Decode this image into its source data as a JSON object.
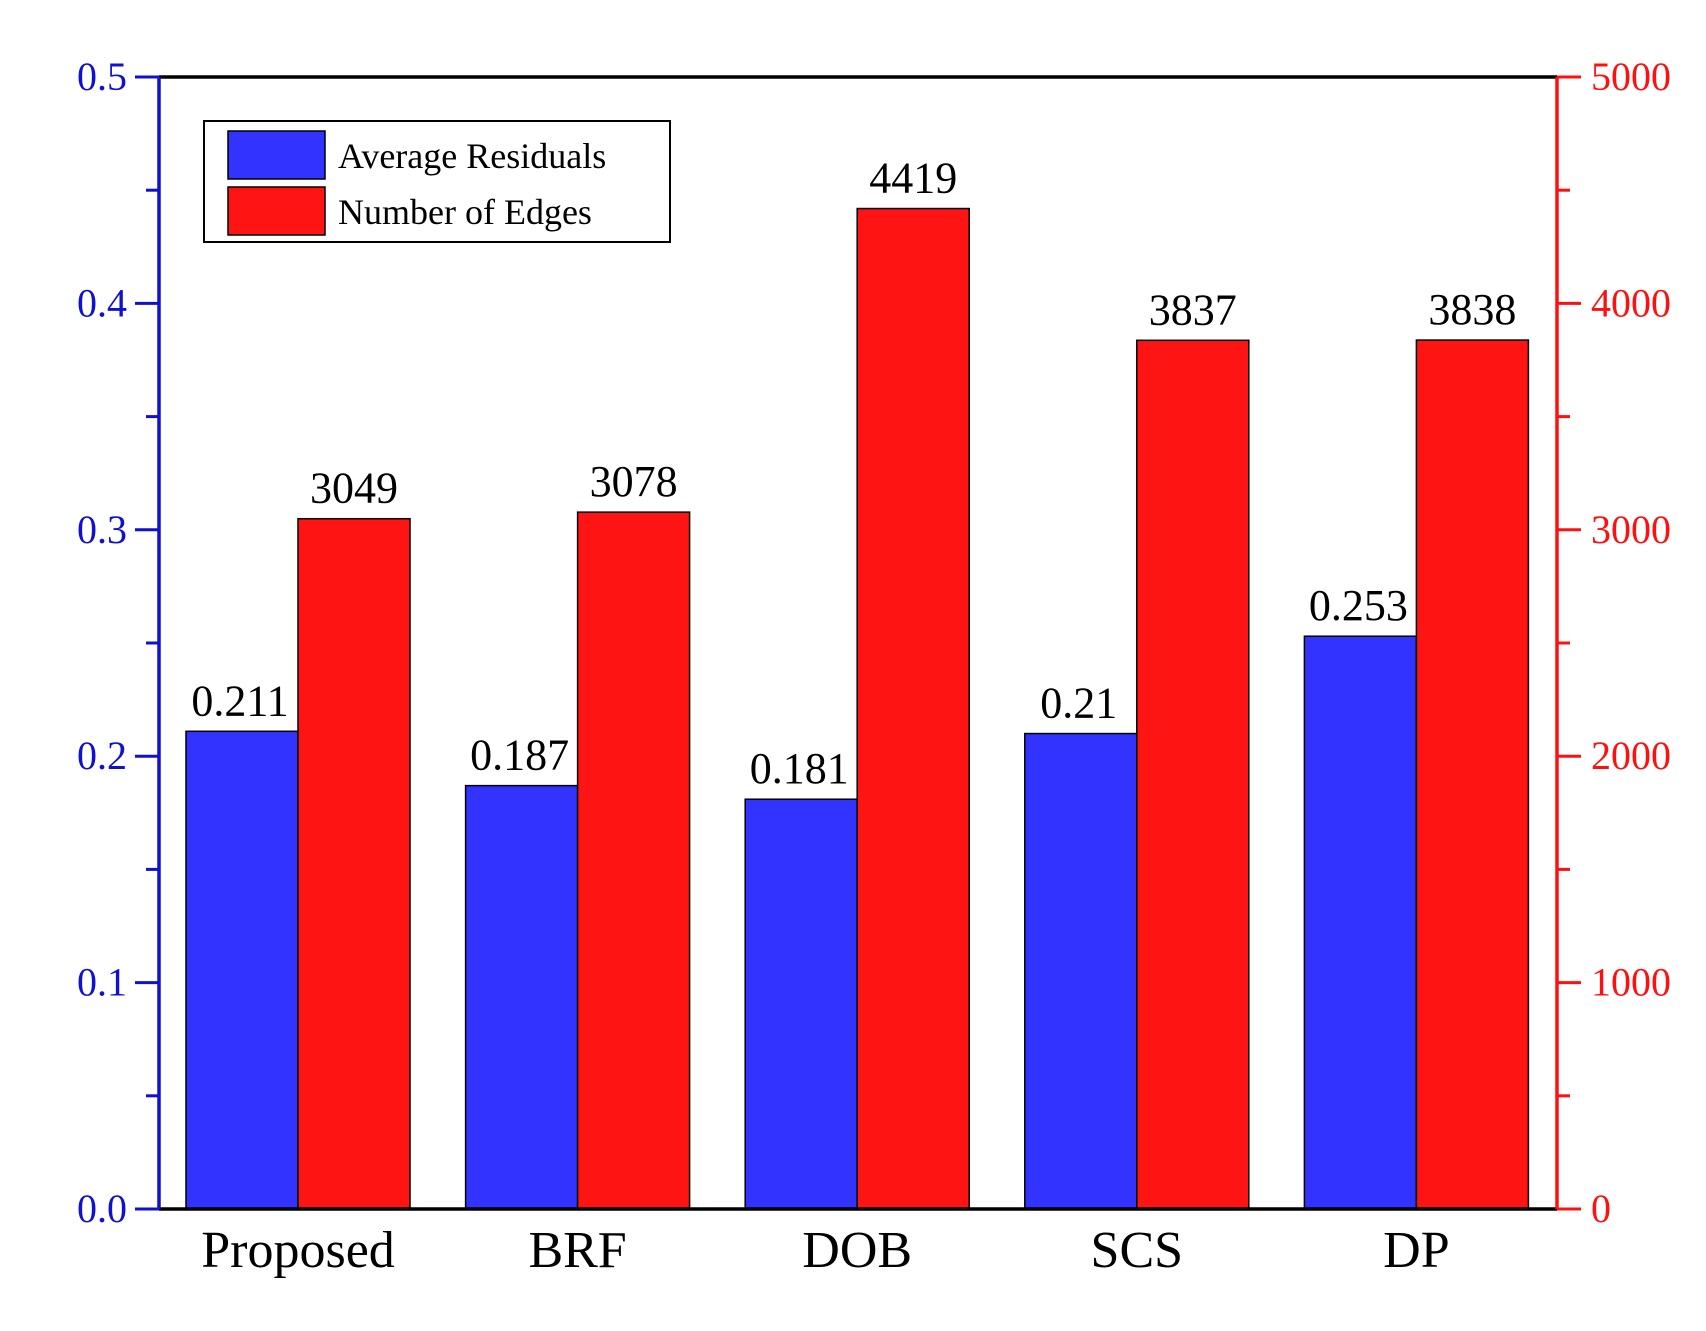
{
  "chart_data": {
    "type": "bar",
    "title": "",
    "xlabel": "",
    "ylabel": "",
    "y2label": "",
    "categories": [
      "Proposed",
      "BRF",
      "DOB",
      "SCS",
      "DP"
    ],
    "series": [
      {
        "name": "Average Residuals",
        "axis": "left",
        "color": "#3333ff",
        "values": [
          0.211,
          0.187,
          0.181,
          0.21,
          0.253
        ],
        "labels": [
          "0.211",
          "0.187",
          "0.181",
          "0.21",
          "0.253"
        ]
      },
      {
        "name": "Number of Edges",
        "axis": "right",
        "color": "#ff1414",
        "values": [
          3049,
          3078,
          4419,
          3837,
          3838
        ],
        "labels": [
          "3049",
          "3078",
          "4419",
          "3837",
          "3838"
        ]
      }
    ],
    "ylim": [
      0,
      0.5
    ],
    "y2lim": [
      0,
      5000
    ],
    "yticks": [
      0.0,
      0.1,
      0.2,
      0.3,
      0.4,
      0.5
    ],
    "ytick_labels": [
      "0.0",
      "0.1",
      "0.2",
      "0.3",
      "0.4",
      "0.5"
    ],
    "y2ticks": [
      0,
      1000,
      2000,
      3000,
      4000,
      5000
    ],
    "y2tick_labels": [
      "0",
      "1000",
      "2000",
      "3000",
      "4000",
      "5000"
    ],
    "left_axis_color": "#1010d0",
    "right_axis_color": "#ff1010",
    "legend": {
      "position": "top-left",
      "entries": [
        "Average Residuals",
        "Number of Edges"
      ]
    },
    "grid": false
  }
}
